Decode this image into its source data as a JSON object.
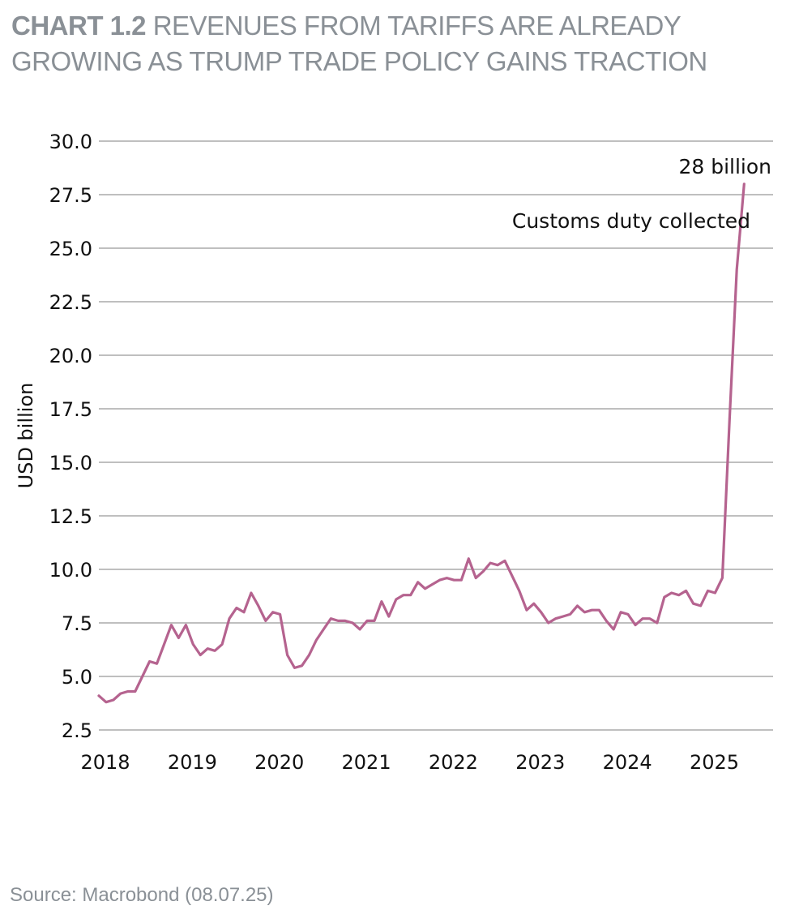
{
  "header": {
    "chart_number": "CHART 1.2",
    "title": "REVENUES FROM TARIFFS ARE ALREADY GROWING AS TRUMP TRADE POLICY GAINS TRACTION"
  },
  "footer": {
    "source": "Source: Macrobond (08.07.25)"
  },
  "colors": {
    "line": "#b5638f",
    "grid": "#999999",
    "text": "#111111",
    "header": "#8a9096"
  },
  "chart_data": {
    "type": "line",
    "title": "REVENUES FROM TARIFFS ARE ALREADY GROWING AS TRUMP TRADE POLICY GAINS TRACTION",
    "ylabel": "USD billion",
    "xlabel": "",
    "ylim": [
      2.5,
      30.0
    ],
    "yticks": [
      "2.5",
      "5.0",
      "7.5",
      "10.0",
      "12.5",
      "15.0",
      "17.5",
      "20.0",
      "22.5",
      "25.0",
      "27.5",
      "30.0"
    ],
    "xlim": [
      2018.0,
      2025.75
    ],
    "xticks": [
      "2018",
      "2019",
      "2020",
      "2021",
      "2022",
      "2023",
      "2024",
      "2025"
    ],
    "grid": "horizontal",
    "annotations": [
      {
        "text": "28 billion",
        "x": 2025.42,
        "y": 28.0
      },
      {
        "text": "Customs duty collected",
        "x": 2025.42,
        "y": 25.0
      }
    ],
    "series": [
      {
        "name": "Customs duty collected",
        "x": [
          2018.0,
          2018.083,
          2018.167,
          2018.25,
          2018.333,
          2018.417,
          2018.5,
          2018.583,
          2018.667,
          2018.75,
          2018.833,
          2018.917,
          2019.0,
          2019.083,
          2019.167,
          2019.25,
          2019.333,
          2019.417,
          2019.5,
          2019.583,
          2019.667,
          2019.75,
          2019.833,
          2019.917,
          2020.0,
          2020.083,
          2020.167,
          2020.25,
          2020.333,
          2020.417,
          2020.5,
          2020.583,
          2020.667,
          2020.75,
          2020.833,
          2020.917,
          2021.0,
          2021.083,
          2021.167,
          2021.25,
          2021.333,
          2021.417,
          2021.5,
          2021.583,
          2021.667,
          2021.75,
          2021.833,
          2021.917,
          2022.0,
          2022.083,
          2022.167,
          2022.25,
          2022.333,
          2022.417,
          2022.5,
          2022.583,
          2022.667,
          2022.75,
          2022.833,
          2022.917,
          2023.0,
          2023.083,
          2023.167,
          2023.25,
          2023.333,
          2023.417,
          2023.5,
          2023.583,
          2023.667,
          2023.75,
          2023.833,
          2023.917,
          2024.0,
          2024.083,
          2024.167,
          2024.25,
          2024.333,
          2024.417,
          2024.5,
          2024.583,
          2024.667,
          2024.75,
          2024.833,
          2024.917,
          2025.0,
          2025.083,
          2025.167,
          2025.25,
          2025.333,
          2025.417
        ],
        "values": [
          4.1,
          3.8,
          3.9,
          4.2,
          4.3,
          4.3,
          5.0,
          5.7,
          5.6,
          6.5,
          7.4,
          6.8,
          7.4,
          6.5,
          6.0,
          6.3,
          6.2,
          6.5,
          7.7,
          8.2,
          8.0,
          8.9,
          8.3,
          7.6,
          8.0,
          7.9,
          6.0,
          5.4,
          5.5,
          6.0,
          6.7,
          7.2,
          7.7,
          7.6,
          7.6,
          7.5,
          7.2,
          7.6,
          7.6,
          8.5,
          7.8,
          8.6,
          8.8,
          8.8,
          9.4,
          9.1,
          9.3,
          9.5,
          9.6,
          9.5,
          9.5,
          10.5,
          9.6,
          9.9,
          10.3,
          10.2,
          10.4,
          9.7,
          9.0,
          8.1,
          8.4,
          8.0,
          7.5,
          7.7,
          7.8,
          7.9,
          8.3,
          8.0,
          8.1,
          8.1,
          7.6,
          7.2,
          8.0,
          7.9,
          7.4,
          7.7,
          7.7,
          7.5,
          8.7,
          8.9,
          8.8,
          9.0,
          8.4,
          8.3,
          9.0,
          8.9,
          9.6,
          17.0,
          24.0,
          28.0
        ]
      }
    ]
  }
}
